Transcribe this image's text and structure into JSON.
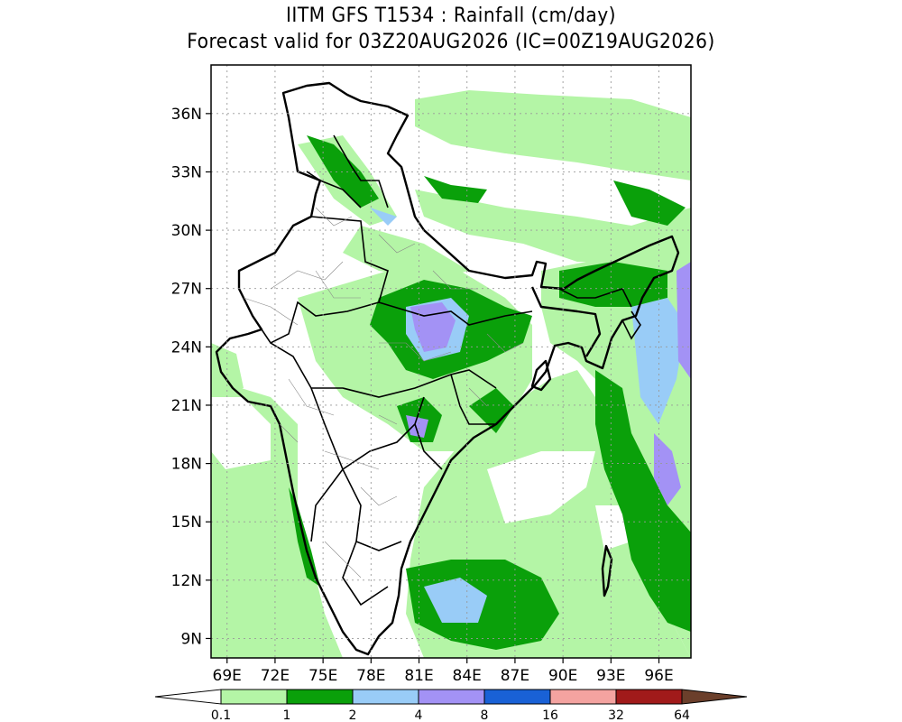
{
  "title": {
    "line1": "IITM GFS T1534 : Rainfall (cm/day)",
    "line2": "Forecast valid for 03Z20AUG2026 (IC=00Z19AUG2026)"
  },
  "axes": {
    "lat_labels": [
      "9N",
      "12N",
      "15N",
      "18N",
      "21N",
      "24N",
      "27N",
      "30N",
      "33N",
      "36N"
    ],
    "lat_values": [
      9,
      12,
      15,
      18,
      21,
      24,
      27,
      30,
      33,
      36
    ],
    "lon_labels": [
      "69E",
      "72E",
      "75E",
      "78E",
      "81E",
      "84E",
      "87E",
      "90E",
      "93E",
      "96E"
    ],
    "lon_values": [
      69,
      72,
      75,
      78,
      81,
      84,
      87,
      90,
      93,
      96
    ],
    "lon_range": [
      68,
      98
    ],
    "lat_range": [
      8,
      38.5
    ],
    "grid": "dotted"
  },
  "colorbar": {
    "levels": [
      "0.1",
      "1",
      "2",
      "4",
      "8",
      "16",
      "32",
      "64"
    ],
    "colors": [
      "#b4f5a6",
      "#0aa00a",
      "#99ccf7",
      "#a392f5",
      "#1961d6",
      "#f4a3a0",
      "#a11a1a",
      "#6b3f2b"
    ],
    "under_color": "#ffffff",
    "over_color": "#6b3f2b"
  },
  "legend_colors": {
    "light_green": "#b4f5a6",
    "dark_green": "#0aa00a",
    "light_blue": "#99ccf7",
    "purple": "#a392f5",
    "blue": "#1961d6"
  }
}
